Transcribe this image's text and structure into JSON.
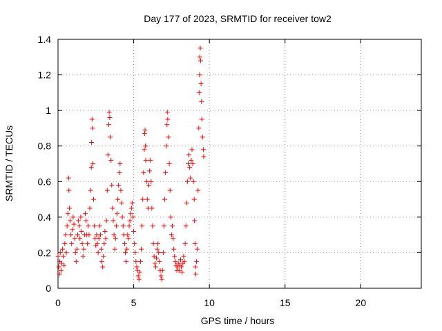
{
  "chart_data": {
    "type": "scatter",
    "title": "Day 177 of 2023, SRMTID for receiver tow2",
    "xlabel": "GPS time / hours",
    "ylabel": "SRMTID / TECUs",
    "xlim": [
      0,
      24
    ],
    "ylim": [
      0,
      1.4
    ],
    "x_ticks": [
      0,
      5,
      10,
      15,
      20
    ],
    "x_tick_labels": [
      "0",
      "5",
      "10",
      "15",
      "20"
    ],
    "y_ticks": [
      0,
      0.2,
      0.4,
      0.6,
      0.8,
      1.0,
      1.2,
      1.4
    ],
    "y_tick_labels": [
      "0",
      "0.2",
      "0.4",
      "0.6",
      "0.8",
      "1",
      "1.2",
      "1.4"
    ],
    "grid": true,
    "marker": "+",
    "colors": {
      "points": "#ff0000",
      "grid": "#a0a0a0",
      "axes": "#000000"
    },
    "series": [
      {
        "name": "SRMTID",
        "points": [
          [
            0.0,
            0.18
          ],
          [
            0.05,
            0.12
          ],
          [
            0.1,
            0.08
          ],
          [
            0.12,
            0.15
          ],
          [
            0.15,
            0.2
          ],
          [
            0.2,
            0.1
          ],
          [
            0.25,
            0.14
          ],
          [
            0.3,
            0.22
          ],
          [
            0.35,
            0.18
          ],
          [
            0.4,
            0.13
          ],
          [
            0.45,
            0.25
          ],
          [
            0.5,
            0.3
          ],
          [
            0.55,
            0.2
          ],
          [
            0.6,
            0.35
          ],
          [
            0.65,
            0.42
          ],
          [
            0.7,
            0.62
          ],
          [
            0.72,
            0.55
          ],
          [
            0.75,
            0.45
          ],
          [
            0.8,
            0.38
          ],
          [
            0.85,
            0.3
          ],
          [
            0.9,
            0.25
          ],
          [
            0.95,
            0.33
          ],
          [
            1.0,
            0.4
          ],
          [
            1.05,
            0.36
          ],
          [
            1.1,
            0.28
          ],
          [
            1.15,
            0.2
          ],
          [
            1.2,
            0.15
          ],
          [
            1.25,
            0.22
          ],
          [
            1.3,
            0.3
          ],
          [
            1.35,
            0.38
          ],
          [
            1.4,
            0.35
          ],
          [
            1.45,
            0.28
          ],
          [
            1.5,
            0.4
          ],
          [
            1.55,
            0.32
          ],
          [
            1.6,
            0.25
          ],
          [
            1.65,
            0.18
          ],
          [
            1.7,
            0.22
          ],
          [
            1.75,
            0.3
          ],
          [
            1.8,
            0.42
          ],
          [
            1.85,
            0.38
          ],
          [
            1.9,
            0.3
          ],
          [
            1.95,
            0.25
          ],
          [
            2.0,
            0.35
          ],
          [
            2.05,
            0.3
          ],
          [
            2.1,
            0.45
          ],
          [
            2.15,
            0.55
          ],
          [
            2.2,
            0.68
          ],
          [
            2.22,
            0.82
          ],
          [
            2.25,
            0.95
          ],
          [
            2.28,
            0.9
          ],
          [
            2.3,
            0.7
          ],
          [
            2.35,
            0.5
          ],
          [
            2.4,
            0.35
          ],
          [
            2.45,
            0.28
          ],
          [
            2.5,
            0.24
          ],
          [
            2.55,
            0.3
          ],
          [
            2.6,
            0.25
          ],
          [
            2.65,
            0.2
          ],
          [
            2.7,
            0.28
          ],
          [
            2.75,
            0.35
          ],
          [
            2.8,
            0.3
          ],
          [
            2.85,
            0.22
          ],
          [
            2.9,
            0.15
          ],
          [
            2.95,
            0.12
          ],
          [
            3.0,
            0.18
          ],
          [
            3.05,
            0.25
          ],
          [
            3.1,
            0.32
          ],
          [
            3.15,
            0.28
          ],
          [
            3.2,
            0.38
          ],
          [
            3.25,
            0.55
          ],
          [
            3.3,
            0.75
          ],
          [
            3.35,
            0.92
          ],
          [
            3.38,
            0.99
          ],
          [
            3.42,
            0.96
          ],
          [
            3.45,
            0.85
          ],
          [
            3.5,
            0.72
          ],
          [
            3.55,
            0.58
          ],
          [
            3.6,
            0.45
          ],
          [
            3.65,
            0.38
          ],
          [
            3.7,
            0.3
          ],
          [
            3.75,
            0.22
          ],
          [
            3.8,
            0.28
          ],
          [
            3.85,
            0.35
          ],
          [
            3.9,
            0.42
          ],
          [
            3.95,
            0.5
          ],
          [
            4.0,
            0.58
          ],
          [
            4.05,
            0.65
          ],
          [
            4.1,
            0.7
          ],
          [
            4.15,
            0.55
          ],
          [
            4.2,
            0.48
          ],
          [
            4.25,
            0.4
          ],
          [
            4.3,
            0.35
          ],
          [
            4.35,
            0.3
          ],
          [
            4.4,
            0.25
          ],
          [
            4.45,
            0.2
          ],
          [
            4.5,
            0.15
          ],
          [
            4.55,
            0.22
          ],
          [
            4.6,
            0.3
          ],
          [
            4.65,
            0.28
          ],
          [
            4.7,
            0.35
          ],
          [
            4.75,
            0.38
          ],
          [
            4.8,
            0.42
          ],
          [
            4.85,
            0.45
          ],
          [
            4.9,
            0.48
          ],
          [
            4.95,
            0.4
          ],
          [
            5.0,
            0.32
          ],
          [
            5.05,
            0.25
          ],
          [
            5.1,
            0.2
          ],
          [
            5.15,
            0.15
          ],
          [
            5.2,
            0.12
          ],
          [
            5.25,
            0.1
          ],
          [
            5.3,
            0.07
          ],
          [
            5.35,
            0.05
          ],
          [
            5.4,
            0.09
          ],
          [
            5.45,
            0.15
          ],
          [
            5.5,
            0.22
          ],
          [
            5.55,
            0.35
          ],
          [
            5.6,
            0.5
          ],
          [
            5.65,
            0.65
          ],
          [
            5.7,
            0.78
          ],
          [
            5.72,
            0.87
          ],
          [
            5.75,
            0.89
          ],
          [
            5.78,
            0.8
          ],
          [
            5.8,
            0.72
          ],
          [
            5.85,
            0.6
          ],
          [
            5.9,
            0.5
          ],
          [
            5.95,
            0.45
          ],
          [
            6.0,
            0.58
          ],
          [
            6.05,
            0.66
          ],
          [
            6.1,
            0.72
          ],
          [
            6.15,
            0.6
          ],
          [
            6.2,
            0.45
          ],
          [
            6.25,
            0.35
          ],
          [
            6.3,
            0.25
          ],
          [
            6.35,
            0.18
          ],
          [
            6.4,
            0.14
          ],
          [
            6.45,
            0.12
          ],
          [
            6.5,
            0.17
          ],
          [
            6.55,
            0.22
          ],
          [
            6.6,
            0.25
          ],
          [
            6.65,
            0.2
          ],
          [
            6.7,
            0.15
          ],
          [
            6.75,
            0.1
          ],
          [
            6.8,
            0.07
          ],
          [
            6.85,
            0.05
          ],
          [
            6.9,
            0.1
          ],
          [
            6.95,
            0.2
          ],
          [
            7.0,
            0.35
          ],
          [
            7.05,
            0.5
          ],
          [
            7.1,
            0.65
          ],
          [
            7.15,
            0.8
          ],
          [
            7.2,
            0.92
          ],
          [
            7.22,
            0.99
          ],
          [
            7.25,
            0.95
          ],
          [
            7.3,
            0.85
          ],
          [
            7.35,
            0.7
          ],
          [
            7.4,
            0.55
          ],
          [
            7.45,
            0.4
          ],
          [
            7.5,
            0.3
          ],
          [
            7.55,
            0.35
          ],
          [
            7.6,
            0.28
          ],
          [
            7.65,
            0.22
          ],
          [
            7.7,
            0.18
          ],
          [
            7.75,
            0.15
          ],
          [
            7.8,
            0.13
          ],
          [
            7.85,
            0.1
          ],
          [
            7.9,
            0.12
          ],
          [
            7.95,
            0.14
          ],
          [
            8.0,
            0.1
          ],
          [
            8.05,
            0.13
          ],
          [
            8.1,
            0.16
          ],
          [
            8.15,
            0.12
          ],
          [
            8.2,
            0.09
          ],
          [
            8.25,
            0.14
          ],
          [
            8.3,
            0.18
          ],
          [
            8.35,
            0.15
          ],
          [
            8.4,
            0.25
          ],
          [
            8.45,
            0.35
          ],
          [
            8.5,
            0.48
          ],
          [
            8.55,
            0.6
          ],
          [
            8.6,
            0.7
          ],
          [
            8.65,
            0.75
          ],
          [
            8.7,
            0.68
          ],
          [
            8.75,
            0.62
          ],
          [
            8.8,
            0.72
          ],
          [
            8.85,
            0.78
          ],
          [
            8.9,
            0.7
          ],
          [
            8.95,
            0.6
          ],
          [
            9.0,
            0.5
          ],
          [
            9.02,
            0.38
          ],
          [
            9.05,
            0.25
          ],
          [
            9.08,
            0.12
          ],
          [
            9.1,
            0.08
          ],
          [
            9.15,
            0.15
          ],
          [
            9.2,
            0.22
          ],
          [
            9.25,
            0.55
          ],
          [
            9.3,
            0.9
          ],
          [
            9.32,
            1.1
          ],
          [
            9.35,
            1.2
          ],
          [
            9.37,
            1.3
          ],
          [
            9.4,
            1.35
          ],
          [
            9.42,
            1.28
          ],
          [
            9.45,
            1.15
          ],
          [
            9.48,
            1.05
          ],
          [
            9.5,
            0.95
          ],
          [
            9.55,
            0.85
          ],
          [
            9.6,
            0.78
          ],
          [
            9.62,
            0.74
          ]
        ]
      }
    ]
  }
}
